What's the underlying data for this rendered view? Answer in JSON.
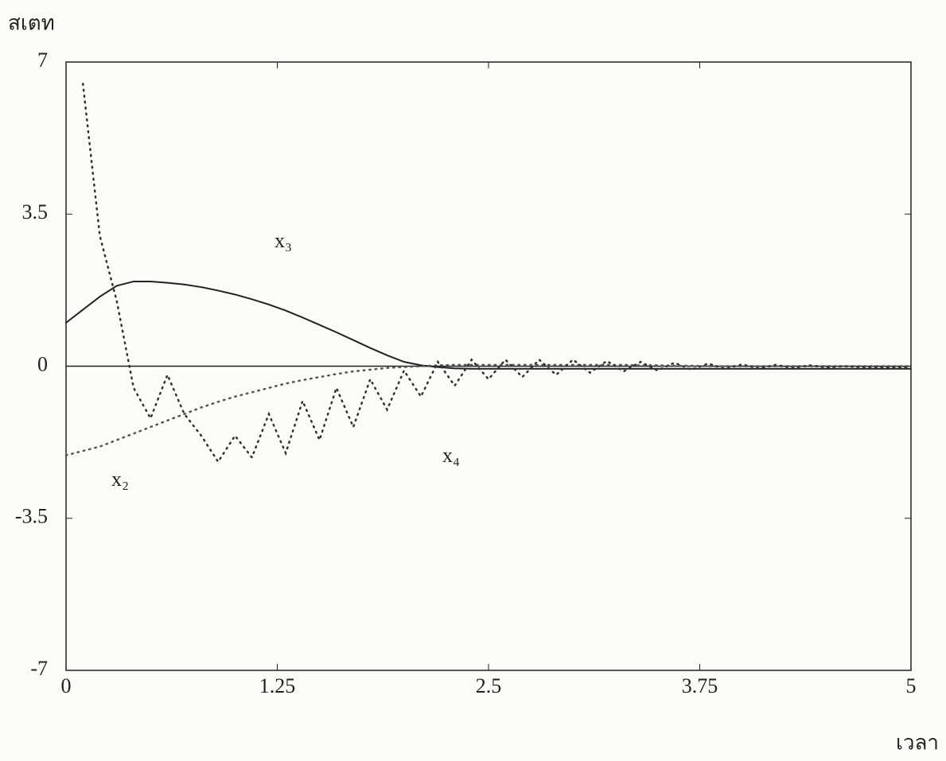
{
  "chart_data": {
    "type": "line",
    "ylabel": "สเตท",
    "xlabel": "เวลา",
    "x": [
      0,
      0.1,
      0.2,
      0.3,
      0.4,
      0.5,
      0.6,
      0.7,
      0.8,
      0.9,
      1.0,
      1.1,
      1.2,
      1.3,
      1.4,
      1.5,
      1.6,
      1.7,
      1.8,
      1.9,
      2.0,
      2.1,
      2.2,
      2.3,
      2.4,
      2.5,
      2.6,
      2.7,
      2.8,
      2.9,
      3.0,
      3.1,
      3.2,
      3.3,
      3.4,
      3.5,
      3.6,
      3.7,
      3.8,
      3.9,
      4.0,
      4.1,
      4.2,
      4.3,
      4.4,
      4.5,
      4.6,
      4.7,
      4.8,
      4.9,
      5.0
    ],
    "series": [
      {
        "name": "x₃",
        "color": "#222222",
        "style": "solid",
        "values": [
          1.0,
          1.3,
          1.6,
          1.85,
          1.95,
          1.95,
          1.92,
          1.88,
          1.82,
          1.74,
          1.65,
          1.54,
          1.42,
          1.28,
          1.12,
          0.95,
          0.78,
          0.6,
          0.42,
          0.25,
          0.1,
          0.02,
          -0.02,
          -0.05,
          -0.06,
          -0.06,
          -0.06,
          -0.06,
          -0.06,
          -0.06,
          -0.06,
          -0.06,
          -0.06,
          -0.06,
          -0.06,
          -0.06,
          -0.06,
          -0.06,
          -0.06,
          -0.06,
          -0.06,
          -0.06,
          -0.06,
          -0.06,
          -0.06,
          -0.06,
          -0.06,
          -0.06,
          -0.06,
          -0.06,
          -0.06
        ]
      },
      {
        "name": "x₂",
        "color": "#555555",
        "style": "dotted",
        "values": [
          -2.05,
          -1.95,
          -1.85,
          -1.7,
          -1.55,
          -1.4,
          -1.25,
          -1.1,
          -0.95,
          -0.82,
          -0.7,
          -0.6,
          -0.5,
          -0.4,
          -0.32,
          -0.25,
          -0.18,
          -0.12,
          -0.08,
          -0.04,
          -0.02,
          0.0,
          0.02,
          0.03,
          0.03,
          0.03,
          0.03,
          0.03,
          0.03,
          0.03,
          0.03,
          0.03,
          0.03,
          0.03,
          0.02,
          0.02,
          0.01,
          0.01,
          0.0,
          0.0,
          0.0,
          0.0,
          0.0,
          0.0,
          0.0,
          0.0,
          0.0,
          0.0,
          0.0,
          0.0,
          0.0
        ]
      },
      {
        "name": "x₄",
        "color": "#333333",
        "style": "dotted",
        "values": [
          null,
          6.5,
          3.0,
          1.5,
          -0.5,
          -1.2,
          -0.2,
          -1.1,
          -1.6,
          -2.2,
          -1.6,
          -2.1,
          -1.1,
          -2.0,
          -0.8,
          -1.7,
          -0.5,
          -1.4,
          -0.3,
          -1.0,
          -0.1,
          -0.7,
          0.1,
          -0.45,
          0.15,
          -0.3,
          0.15,
          -0.25,
          0.15,
          -0.2,
          0.15,
          -0.15,
          0.12,
          -0.12,
          0.1,
          -0.1,
          0.08,
          -0.08,
          0.06,
          -0.06,
          0.04,
          -0.05,
          0.03,
          -0.04,
          0.02,
          -0.03,
          0.0,
          -0.02,
          -0.02,
          -0.03,
          -0.03
        ]
      }
    ],
    "xlim": [
      0,
      5
    ],
    "xticks": [
      0,
      1.25,
      2.5,
      3.75,
      5
    ],
    "ylim": [
      -7,
      7
    ],
    "yticks": [
      -7,
      -3.5,
      0,
      3.5,
      7
    ],
    "zero_line": true
  }
}
